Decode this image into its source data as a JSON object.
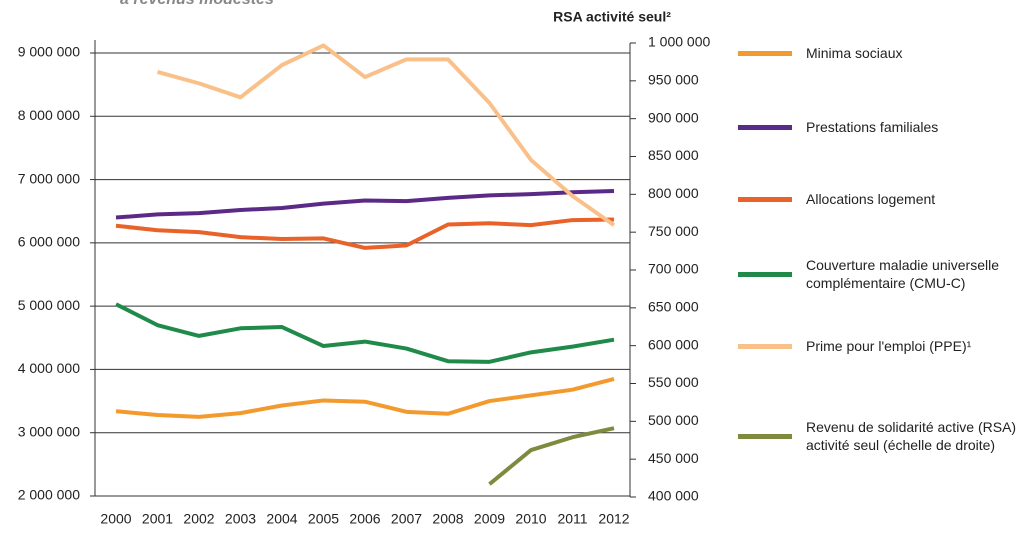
{
  "chart_data": {
    "type": "line",
    "title": "à revenus modestes",
    "y2_label": "RSA activité seul²",
    "categories": [
      "2000",
      "2001",
      "2002",
      "2003",
      "2004",
      "2005",
      "2006",
      "2007",
      "2008",
      "2009",
      "2010",
      "2011",
      "2012"
    ],
    "ylim": [
      2000000,
      9000000
    ],
    "yticks": [
      {
        "value": 2000000,
        "label": "2 000 000"
      },
      {
        "value": 3000000,
        "label": "3 000 000"
      },
      {
        "value": 4000000,
        "label": "4 000 000"
      },
      {
        "value": 5000000,
        "label": "5 000 000"
      },
      {
        "value": 6000000,
        "label": "6 000 000"
      },
      {
        "value": 7000000,
        "label": "7 000 000"
      },
      {
        "value": 8000000,
        "label": "8 000 000"
      },
      {
        "value": 9000000,
        "label": "9 000 000"
      }
    ],
    "y2lim": [
      400000,
      1000000
    ],
    "y2ticks": [
      {
        "value": 400000,
        "label": "400 000"
      },
      {
        "value": 450000,
        "label": "450 000"
      },
      {
        "value": 500000,
        "label": "500 000"
      },
      {
        "value": 550000,
        "label": "550 000"
      },
      {
        "value": 600000,
        "label": "600 000"
      },
      {
        "value": 650000,
        "label": "650 000"
      },
      {
        "value": 700000,
        "label": "700 000"
      },
      {
        "value": 750000,
        "label": "750 000"
      },
      {
        "value": 800000,
        "label": "800 000"
      },
      {
        "value": 850000,
        "label": "850 000"
      },
      {
        "value": 900000,
        "label": "900 000"
      },
      {
        "value": 950000,
        "label": "950 000"
      },
      {
        "value": 1000000,
        "label": "1 000 000"
      }
    ],
    "grid": true,
    "series": [
      {
        "name": "Minima sociaux",
        "color": "#f39a2f",
        "values": [
          3340000,
          3280000,
          3250000,
          3310000,
          3430000,
          3510000,
          3490000,
          3330000,
          3300000,
          3500000,
          3590000,
          3680000,
          3850000
        ]
      },
      {
        "name": "Prestations familiales",
        "color": "#5b2a86",
        "values": [
          6400000,
          6450000,
          6470000,
          6520000,
          6550000,
          6620000,
          6670000,
          6660000,
          6710000,
          6750000,
          6770000,
          6800000,
          6820000
        ]
      },
      {
        "name": "Allocations logement",
        "color": "#e8622a",
        "values": [
          6270000,
          6200000,
          6170000,
          6090000,
          6060000,
          6070000,
          5920000,
          5960000,
          6290000,
          6310000,
          6280000,
          6360000,
          6370000
        ]
      },
      {
        "name": "Couverture maladie universelle complémentaire (CMU-C)",
        "color": "#1f8a4a",
        "values": [
          5030000,
          4700000,
          4530000,
          4650000,
          4670000,
          4370000,
          4440000,
          4330000,
          4130000,
          4120000,
          4270000,
          4360000,
          4470000
        ]
      },
      {
        "name": "Prime pour l'emploi (PPE)¹",
        "color": "#f9c08a",
        "values": [
          null,
          8700000,
          8520000,
          8300000,
          8810000,
          9120000,
          8620000,
          8900000,
          8900000,
          8210000,
          7310000,
          6740000,
          6280000
        ]
      },
      {
        "name": "Revenu de solidarité active (RSA) activité seul (échelle de droite)",
        "color": "#7f8a3e",
        "axis": "y2",
        "values": [
          null,
          null,
          null,
          null,
          null,
          null,
          null,
          null,
          null,
          417000,
          462000,
          479000,
          491000
        ]
      }
    ]
  }
}
